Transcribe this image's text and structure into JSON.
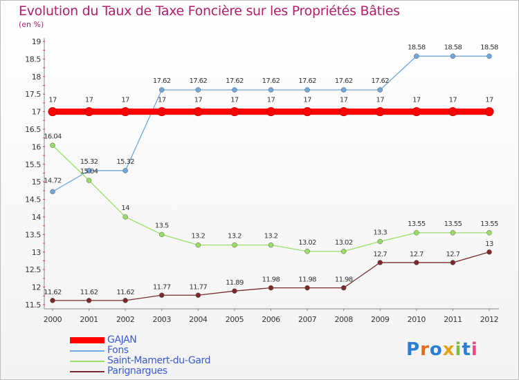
{
  "title": "Evolution du Taux de Taxe Foncière sur les Propriétés Bâties",
  "unit": "(en %)",
  "logo": "Proxiti",
  "chart_data": {
    "type": "line",
    "title": "Evolution du Taux de Taxe Foncière sur les Propriétés Bâties",
    "ylabel": "(en %)",
    "xlabel": "",
    "x": [
      "2000",
      "2001",
      "2002",
      "2003",
      "2004",
      "2005",
      "2006",
      "2007",
      "2008",
      "2009",
      "2010",
      "2011",
      "2012"
    ],
    "ylim": [
      11.5,
      19
    ],
    "yticks": [
      11.5,
      12,
      12.5,
      13,
      13.5,
      14,
      14.5,
      15,
      15.5,
      16,
      16.5,
      17,
      17.5,
      18,
      18.5,
      19
    ],
    "legend": "bottom-left",
    "grid": false,
    "series": [
      {
        "name": "GAJAN",
        "color": "#ff0000",
        "values": [
          17,
          17,
          17,
          17,
          17,
          17,
          17,
          17,
          17,
          17,
          17,
          17,
          17
        ],
        "labels": [
          "17",
          "17",
          "17",
          "17",
          "17",
          "17",
          "17",
          "17",
          "17",
          "17",
          "17",
          "17",
          "17"
        ]
      },
      {
        "name": "Fons",
        "color": "#6fa8dc",
        "values": [
          14.72,
          15.32,
          15.32,
          17.62,
          17.62,
          17.62,
          17.62,
          17.62,
          17.62,
          17.62,
          18.58,
          18.58,
          18.58
        ],
        "labels": [
          "14.72",
          "15.32",
          "15.32",
          "17.62",
          "17.62",
          "17.62",
          "17.62",
          "17.62",
          "17.62",
          "17.62",
          "18.58",
          "18.58",
          "18.58"
        ]
      },
      {
        "name": "Saint-Mamert-du-Gard",
        "color": "#99dd66",
        "values": [
          16.04,
          15.04,
          14,
          13.5,
          13.2,
          13.2,
          13.2,
          13.02,
          13.02,
          13.3,
          13.55,
          13.55,
          13.55
        ],
        "labels": [
          "16.04",
          "15.04",
          "14",
          "13.5",
          "13.2",
          "13.2",
          "13.2",
          "13.02",
          "13.02",
          "13.3",
          "13.55",
          "13.55",
          "13.55"
        ]
      },
      {
        "name": "Parignargues",
        "color": "#7a2a2a",
        "values": [
          11.62,
          11.62,
          11.62,
          11.77,
          11.77,
          11.89,
          11.98,
          11.98,
          11.98,
          12.7,
          12.7,
          12.7,
          13
        ],
        "labels": [
          "11.62",
          "11.62",
          "11.62",
          "11.77",
          "11.77",
          "11.89",
          "11.98",
          "11.98",
          "11.98",
          "12.7",
          "12.7",
          "12.7",
          "13"
        ]
      }
    ]
  }
}
